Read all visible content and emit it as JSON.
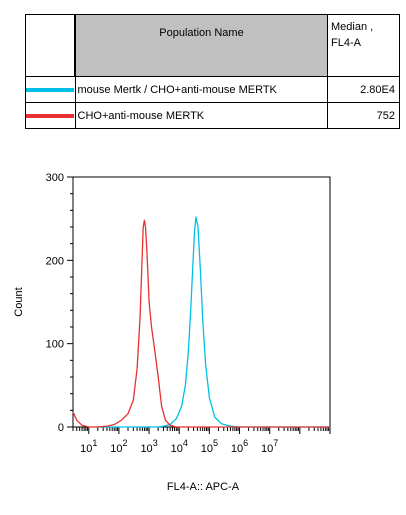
{
  "legend": {
    "header_name": "Population Name",
    "header_value_line1": "Median ,",
    "header_value_line2": "FL4-A",
    "rows": [
      {
        "name": "mouse Mertk / CHO+anti-mouse MERTK",
        "value": "2.80E4",
        "color": "#00c0e8"
      },
      {
        "name": "CHO+anti-mouse MERTK",
        "value": "752",
        "color": "#e83030"
      }
    ]
  },
  "chart_data": {
    "type": "line",
    "xlabel": "FL4-A:: APC-A",
    "ylabel": "Count",
    "x_scale": "log",
    "xlim": [
      3,
      1000000000
    ],
    "ylim": [
      0,
      300
    ],
    "y_ticks": [
      0,
      100,
      200,
      300
    ],
    "x_tick_labels": [
      {
        "base": "10",
        "exp": "1"
      },
      {
        "base": "10",
        "exp": "2"
      },
      {
        "base": "10",
        "exp": "3"
      },
      {
        "base": "10",
        "exp": "4"
      },
      {
        "base": "10",
        "exp": "5"
      },
      {
        "base": "10",
        "exp": "6"
      },
      {
        "base": "10",
        "exp": "7"
      }
    ],
    "series": [
      {
        "name": "mouse Mertk / CHO+anti-mouse MERTK",
        "color": "#00c0e8",
        "x": [
          20,
          1000,
          2000,
          3000,
          5000,
          8000,
          12000,
          16000,
          20000,
          24000,
          28000,
          32000,
          36000,
          42000,
          50000,
          60000,
          75000,
          100000,
          150000,
          250000,
          500000,
          1000000,
          10000000,
          100000000,
          1000000000
        ],
        "y": [
          0,
          0,
          0,
          1,
          3,
          10,
          25,
          50,
          90,
          140,
          190,
          235,
          252,
          240,
          190,
          130,
          75,
          35,
          12,
          4,
          1,
          0,
          0,
          0,
          0
        ]
      },
      {
        "name": "CHO+anti-mouse MERTK",
        "color": "#e83030",
        "x": [
          3,
          4,
          6,
          10,
          20,
          40,
          70,
          120,
          200,
          300,
          400,
          500,
          580,
          640,
          700,
          760,
          820,
          900,
          1000,
          1200,
          1500,
          2000,
          2600,
          3500,
          5000,
          8000,
          20000,
          100000,
          1000000000
        ],
        "y": [
          18,
          8,
          2,
          0,
          0,
          1,
          3,
          8,
          16,
          32,
          70,
          130,
          195,
          240,
          248,
          240,
          220,
          190,
          150,
          120,
          95,
          60,
          25,
          8,
          2,
          0,
          0,
          0,
          0
        ]
      }
    ]
  }
}
